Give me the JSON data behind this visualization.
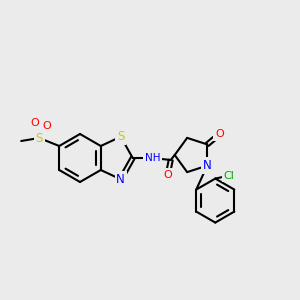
{
  "bg_color": "#ebebeb",
  "fig_size": [
    3.0,
    3.0
  ],
  "dpi": 100,
  "atom_colors": {
    "S": "#cccc00",
    "O": "#ff0000",
    "N": "#0000ff",
    "Cl": "#00aa00",
    "C": "#000000",
    "H": "#888888"
  }
}
